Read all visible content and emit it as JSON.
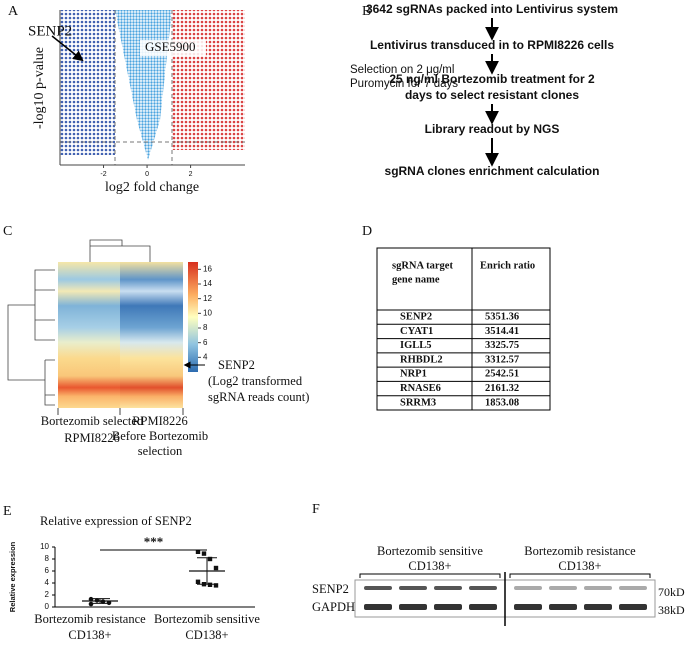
{
  "panel_a": {
    "label": "A",
    "title": "GSE5900",
    "annotation": "SENP2",
    "xlabel": "log2 fold change",
    "ylabel": "-log10 p-value",
    "xlim": [
      -4,
      4.5
    ],
    "xticks": [
      -2,
      0,
      2
    ]
  },
  "panel_b": {
    "label": "B",
    "steps": [
      [
        "3642 sgRNAs packed into Lentivirus system"
      ],
      [
        "Lentivirus transduced in to RPMI8226 cells"
      ],
      [
        "25 ng/ml Bortezomib treatment for 2",
        "days to select resistant clones"
      ],
      [
        "Library readout by NGS"
      ],
      [
        "sgRNA clones enrichment calculation"
      ]
    ],
    "note": [
      "Selection on 2 μg/ml",
      "Puromycin for 7 days"
    ]
  },
  "panel_c": {
    "label": "C",
    "colorbar_lim": [
      2,
      17
    ],
    "colorbar_ticks": [
      4,
      6,
      8,
      10,
      12,
      14,
      16
    ],
    "annotation": [
      "SENP2",
      "(Log2 transformed",
      "sgRNA reads count)"
    ],
    "columns": [
      [
        "Bortezomib selected",
        "RPMI8226"
      ],
      [
        "RPMI8226",
        "Before Bortezomib",
        "selection"
      ]
    ]
  },
  "panel_d": {
    "label": "D",
    "header": [
      [
        "sgRNA target",
        "gene name"
      ],
      [
        "Enrich ratio"
      ]
    ],
    "rows": [
      [
        "SENP2",
        "5351.36"
      ],
      [
        "CYAT1",
        "3514.41"
      ],
      [
        "IGLL5",
        "3325.75"
      ],
      [
        "RHBDL2",
        "3312.57"
      ],
      [
        "NRP1",
        "2542.51"
      ],
      [
        "RNASE6",
        "2161.32"
      ],
      [
        "SRRM3",
        "1853.08"
      ]
    ]
  },
  "chart_data": {
    "type": "dot",
    "label": "E",
    "title": "Relative expression of SENP2",
    "ylabel": "Relative expression",
    "annotation": "***",
    "ylim": [
      0,
      10
    ],
    "yticks": [
      0,
      2,
      4,
      6,
      8,
      10
    ],
    "color": "#111111",
    "groups": [
      {
        "name": [
          "Bortezomib resistance",
          "CD138+"
        ],
        "values": [
          1.3,
          1.1,
          0.9,
          0.7,
          0.5
        ],
        "mean": 1.0,
        "sd": 0.4
      },
      {
        "name": [
          "Bortezomib sensitive",
          "CD138+"
        ],
        "values": [
          9.2,
          8.9,
          8.0,
          6.5,
          4.2,
          3.8,
          3.7,
          3.6
        ],
        "mean": 6.0,
        "sd": 2.2
      }
    ]
  },
  "panel_f": {
    "label": "F",
    "groups": [
      [
        "Bortezomib sensitive",
        "CD138+"
      ],
      [
        "Bortezomib resistance",
        "CD138+"
      ]
    ],
    "rows": [
      "SENP2",
      "GAPDH"
    ],
    "sizes": [
      "70kD",
      "38kD"
    ]
  }
}
